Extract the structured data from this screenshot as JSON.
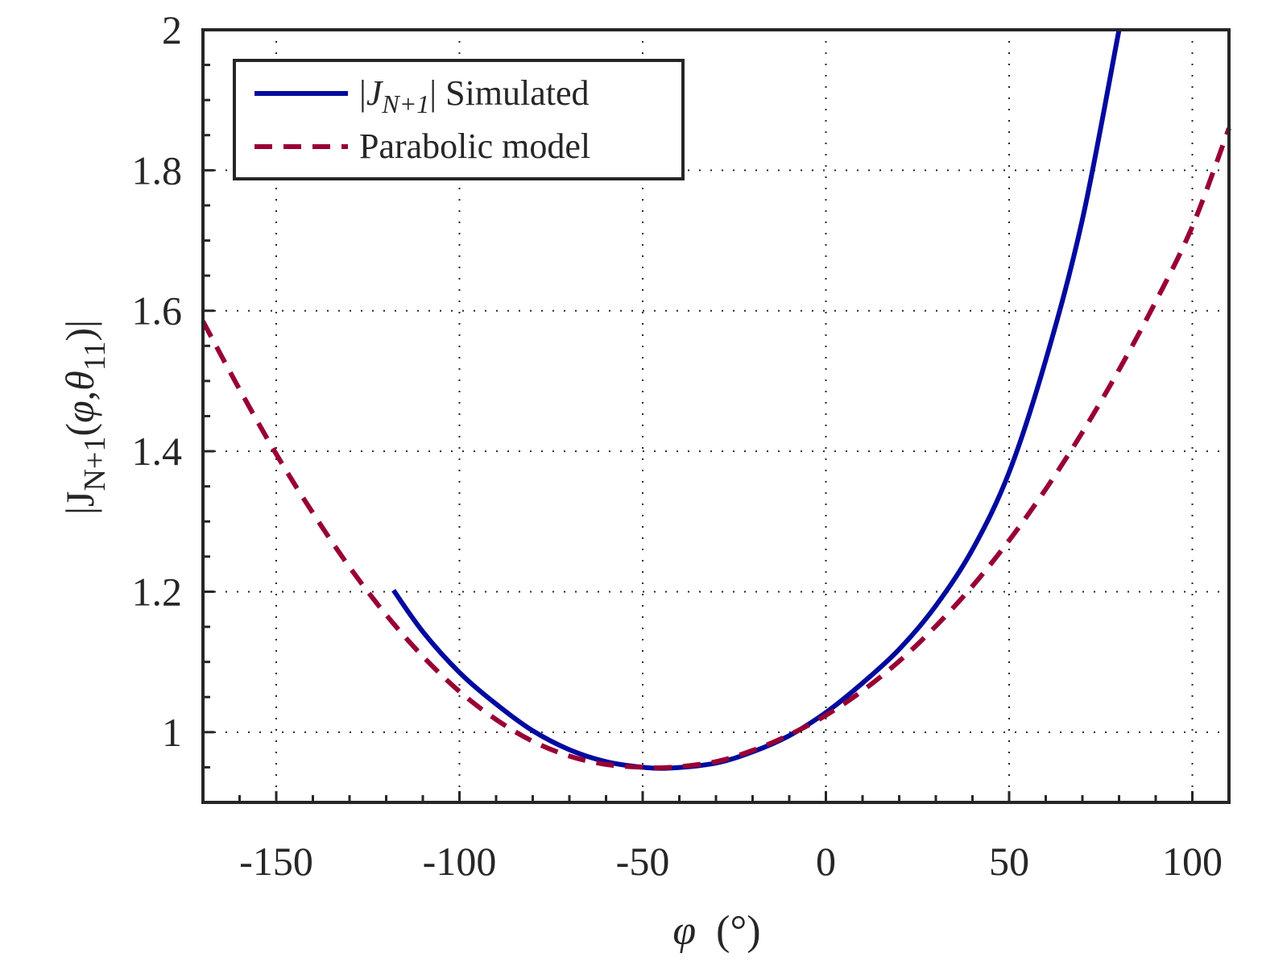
{
  "chart_data": {
    "type": "line",
    "title": "",
    "xlabel": "φ (°)",
    "xlabel_parts": {
      "symbol": "φ",
      "unit": "(°)"
    },
    "ylabel": "|J_{N+1}(φ,θ_{11})|",
    "ylabel_parts": {
      "open_bar": "|",
      "base": "J",
      "sub": "N+1",
      "args_open": "(",
      "phi": "φ",
      "comma": ",",
      "theta": "θ",
      "theta_sub": "11",
      "args_close": ")",
      "close_bar": "|"
    },
    "xlim": [
      -170,
      110
    ],
    "ylim": [
      0.9,
      2.0
    ],
    "xticks": [
      -150,
      -100,
      -50,
      0,
      50,
      100
    ],
    "xtick_labels": [
      "-150",
      "-100",
      "-50",
      "0",
      "50",
      "100"
    ],
    "yticks": [
      1.0,
      1.2,
      1.4,
      1.6,
      1.8,
      2.0
    ],
    "ytick_labels": [
      "1",
      "1.2",
      "1.4",
      "1.6",
      "1.8",
      "2"
    ],
    "grid": true,
    "legend_position": "top-left",
    "series": [
      {
        "name": "|J_{N+1}| Simulated",
        "legend_parts": {
          "open_bar": "|",
          "base": "J",
          "sub": "N+1",
          "close_bar": "|",
          "rest": " Simulated"
        },
        "color": "#000a9e",
        "style": "solid",
        "x": [
          -118,
          -110,
          -100,
          -90,
          -80,
          -70,
          -60,
          -50,
          -42,
          -30,
          -20,
          -10,
          0,
          10,
          20,
          30,
          40,
          50,
          60,
          70,
          80
        ],
        "y": [
          1.202,
          1.143,
          1.085,
          1.04,
          1.002,
          0.975,
          0.958,
          0.95,
          0.949,
          0.956,
          0.972,
          0.995,
          1.028,
          1.07,
          1.118,
          1.18,
          1.26,
          1.37,
          1.53,
          1.73,
          2.0
        ]
      },
      {
        "name": "Parabolic model",
        "color": "#990033",
        "style": "dashed",
        "x": [
          -170,
          -160,
          -150,
          -140,
          -130,
          -120,
          -110,
          -100,
          -90,
          -80,
          -70,
          -60,
          -50,
          -42,
          -30,
          -20,
          -10,
          0,
          10,
          20,
          30,
          40,
          50,
          60,
          70,
          80,
          90,
          100,
          110
        ],
        "y": [
          1.585,
          1.488,
          1.396,
          1.312,
          1.235,
          1.167,
          1.108,
          1.058,
          1.018,
          0.987,
          0.966,
          0.954,
          0.95,
          0.95,
          0.958,
          0.974,
          0.996,
          1.024,
          1.059,
          1.101,
          1.151,
          1.208,
          1.273,
          1.346,
          1.427,
          1.516,
          1.613,
          1.72,
          1.86
        ]
      }
    ]
  }
}
